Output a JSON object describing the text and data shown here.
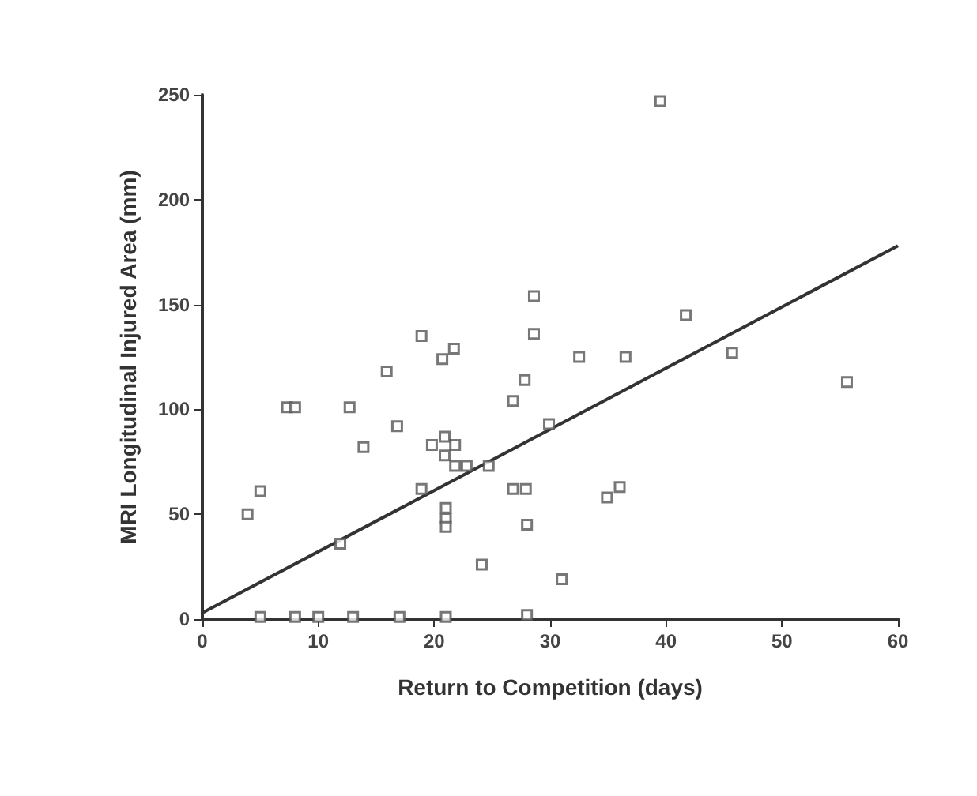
{
  "chart_data": {
    "type": "scatter",
    "xlabel": "Return to Competition (days)",
    "ylabel": "MRI Longitudinal Injured Area (mm)",
    "xlim": [
      0,
      60
    ],
    "xticks": [
      0,
      10,
      20,
      30,
      40,
      50,
      60
    ],
    "ylim": [
      0,
      250
    ],
    "yticks": [
      0,
      50,
      100,
      150,
      200,
      250
    ],
    "grid": false,
    "series": [
      {
        "marker": "square",
        "color": "#555555",
        "x": [
          28.6,
          28.6,
          18.9,
          21.7,
          20.7,
          39.5,
          41.7,
          45.7,
          36.5,
          32.5,
          15.9,
          27.8,
          26.8,
          7.3,
          8.0,
          12.7,
          16.8,
          29.9,
          13.9,
          20.9,
          19.8,
          21.8,
          20.9,
          21.8,
          22.8,
          24.7,
          18.9,
          26.8,
          27.9,
          5,
          3.9,
          21,
          21,
          21,
          28,
          11.9,
          24.1,
          31,
          55.6,
          34.9,
          36,
          5,
          8,
          10,
          13,
          17,
          21,
          28
        ],
        "values": [
          154,
          136,
          135,
          129,
          124,
          247,
          145,
          127,
          125,
          125,
          118,
          114,
          104,
          101,
          101,
          101,
          92,
          93,
          82,
          87,
          83,
          83,
          78,
          73,
          73,
          73,
          62,
          62,
          62,
          61,
          50,
          53,
          48,
          44,
          45,
          36,
          26,
          19,
          113,
          58,
          63,
          1,
          1,
          1,
          1,
          1,
          1,
          2
        ]
      },
      {
        "type": "line",
        "color": "#333333",
        "x": [
          0,
          60
        ],
        "values": [
          3,
          178
        ]
      }
    ]
  }
}
